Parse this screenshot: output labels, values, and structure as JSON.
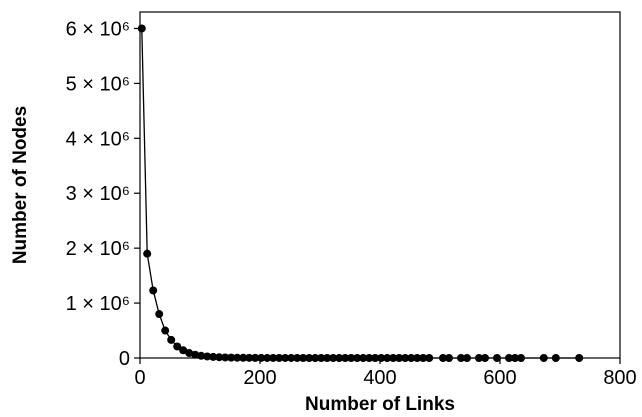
{
  "chart_data": {
    "type": "line",
    "title": "",
    "xlabel": "Number of Links",
    "ylabel": "Number of Nodes",
    "xlim": [
      0,
      800
    ],
    "ylim": [
      0,
      6300000
    ],
    "grid": false,
    "x_ticks": [
      {
        "value": 0,
        "label": "0"
      },
      {
        "value": 200,
        "label": "200"
      },
      {
        "value": 400,
        "label": "400"
      },
      {
        "value": 600,
        "label": "600"
      },
      {
        "value": 800,
        "label": "800"
      }
    ],
    "y_ticks": [
      {
        "value": 0,
        "label": "0"
      },
      {
        "value": 1000000,
        "label": "1 × 10⁶"
      },
      {
        "value": 2000000,
        "label": "2 × 10⁶"
      },
      {
        "value": 3000000,
        "label": "3 × 10⁶"
      },
      {
        "value": 4000000,
        "label": "4 × 10⁶"
      },
      {
        "value": 5000000,
        "label": "5 × 10⁶"
      },
      {
        "value": 6000000,
        "label": "6 × 10⁶"
      }
    ],
    "series": [
      {
        "color": "#000000",
        "points": [
          [
            3,
            6000000
          ],
          [
            12,
            1900000
          ],
          [
            22,
            1230000
          ],
          [
            32,
            800000
          ],
          [
            42,
            500000
          ],
          [
            52,
            330000
          ],
          [
            62,
            210000
          ],
          [
            72,
            140000
          ],
          [
            82,
            90000
          ],
          [
            92,
            60000
          ],
          [
            102,
            40000
          ],
          [
            112,
            28000
          ],
          [
            122,
            20000
          ],
          [
            132,
            14000
          ],
          [
            142,
            10000
          ],
          [
            152,
            7000
          ],
          [
            162,
            5000
          ],
          [
            172,
            4000
          ],
          [
            182,
            3000
          ],
          [
            192,
            2000
          ],
          [
            202,
            1500
          ],
          [
            212,
            1000
          ],
          [
            222,
            800
          ],
          [
            232,
            600
          ],
          [
            242,
            500
          ],
          [
            252,
            400
          ],
          [
            262,
            300
          ],
          [
            272,
            250
          ],
          [
            282,
            200
          ],
          [
            292,
            150
          ],
          [
            302,
            120
          ],
          [
            312,
            100
          ],
          [
            322,
            90
          ],
          [
            332,
            80
          ],
          [
            342,
            70
          ],
          [
            352,
            60
          ],
          [
            362,
            50
          ],
          [
            372,
            40
          ],
          [
            382,
            35
          ],
          [
            392,
            30
          ],
          [
            402,
            25
          ],
          [
            412,
            20
          ],
          [
            422,
            18
          ],
          [
            432,
            15
          ],
          [
            442,
            12
          ],
          [
            452,
            10
          ],
          [
            462,
            9
          ],
          [
            472,
            8
          ],
          [
            482,
            7
          ],
          [
            505,
            6
          ],
          [
            515,
            5
          ],
          [
            535,
            5
          ],
          [
            545,
            4
          ],
          [
            565,
            4
          ],
          [
            575,
            3
          ],
          [
            595,
            3
          ],
          [
            615,
            2
          ],
          [
            625,
            2
          ],
          [
            635,
            2
          ],
          [
            673,
            1
          ],
          [
            693,
            1
          ],
          [
            732,
            1
          ]
        ]
      }
    ]
  }
}
